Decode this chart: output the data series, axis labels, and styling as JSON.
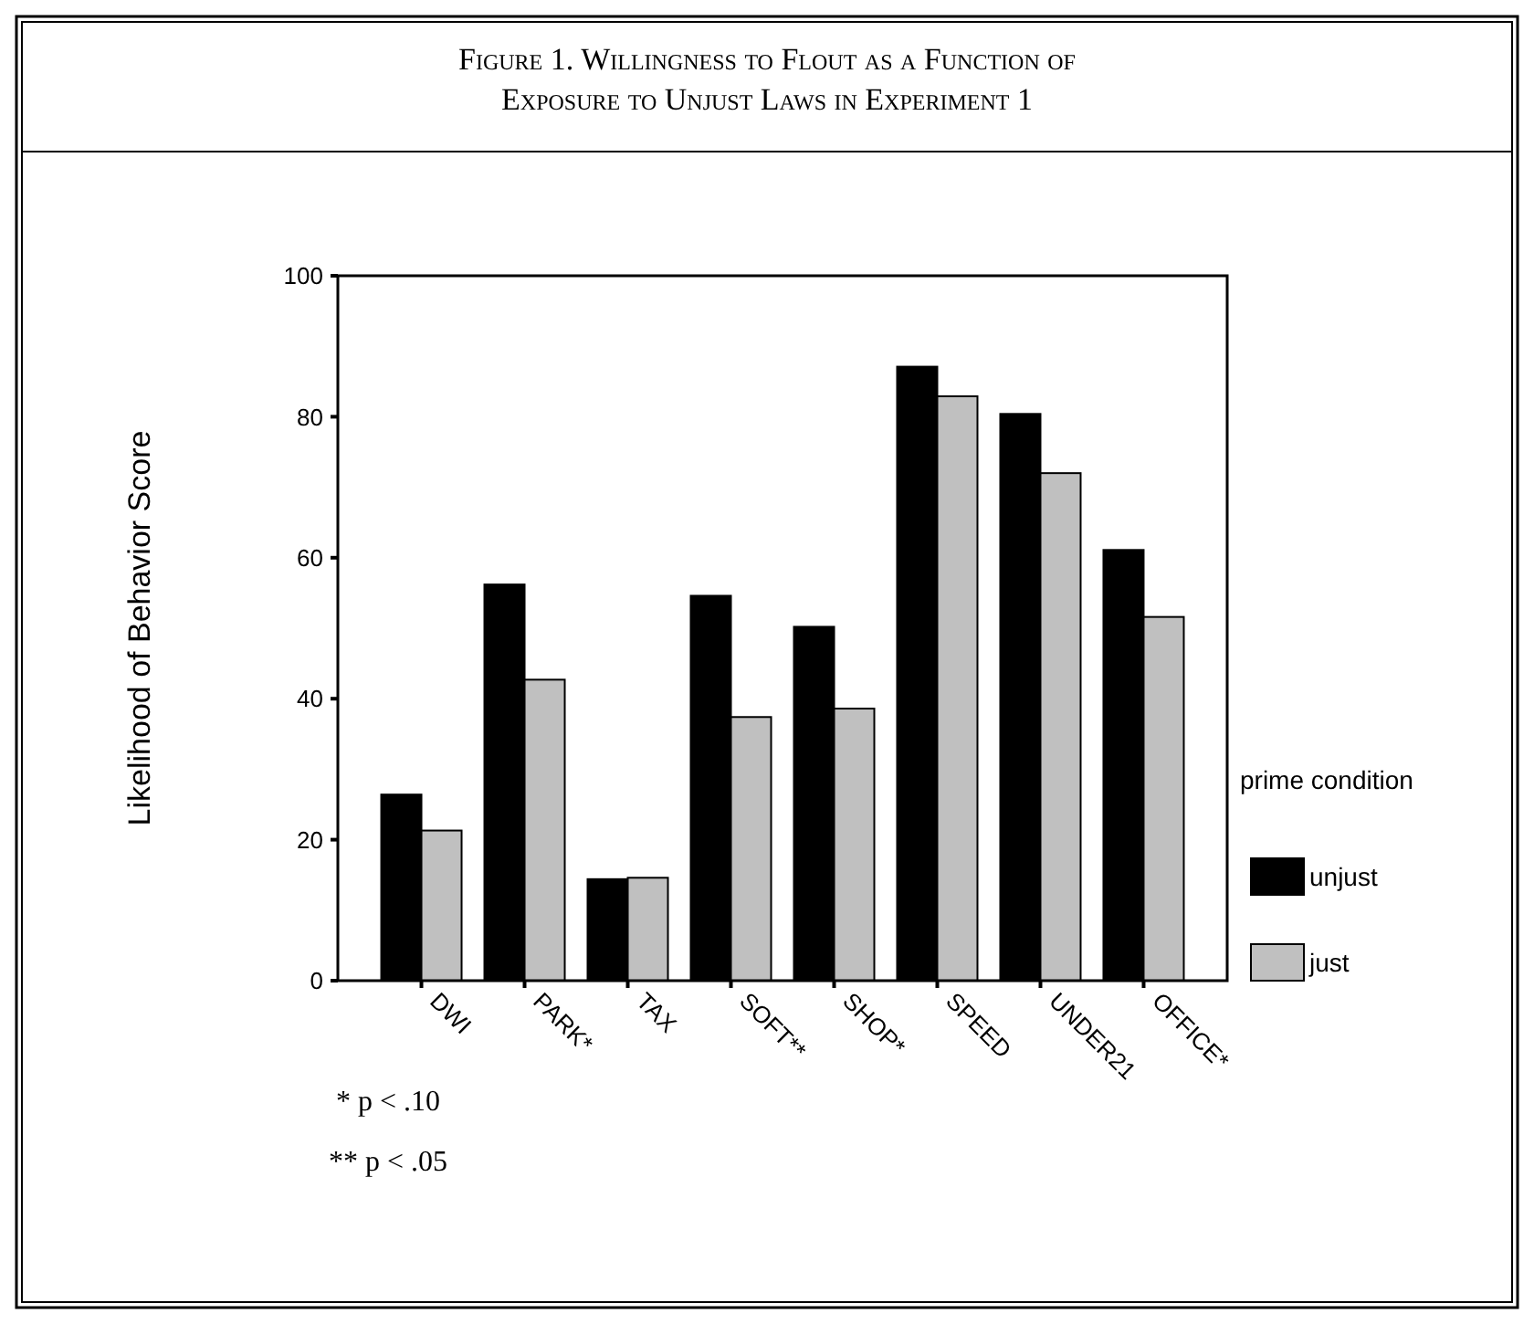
{
  "chart_data": {
    "type": "bar",
    "title": "Figure 1.  Willingness to Flout as a Function of Exposure to Unjust Laws in Experiment 1",
    "ylabel": "Likelihood of Behavior Score",
    "legend_title": "prime condition",
    "categories": [
      "DWI",
      "PARK*",
      "TAX",
      "SOFT**",
      "SHOP*",
      "SPEED",
      "UNDER21",
      "OFFICE*"
    ],
    "series": [
      {
        "name": "unjust",
        "color": "#000000",
        "values": [
          26.4,
          56.2,
          14.4,
          54.6,
          50.2,
          87.1,
          80.4,
          61.1
        ]
      },
      {
        "name": "just",
        "color": "#c0c0c0",
        "values": [
          21.3,
          42.7,
          14.6,
          37.4,
          38.6,
          82.9,
          72.0,
          51.6
        ]
      }
    ],
    "ylim": [
      0,
      100
    ],
    "yticks": [
      0,
      20,
      40,
      60,
      80,
      100
    ],
    "grid": false,
    "legend": "right",
    "annotations": [
      "* p < .10",
      "** p < .05"
    ]
  }
}
